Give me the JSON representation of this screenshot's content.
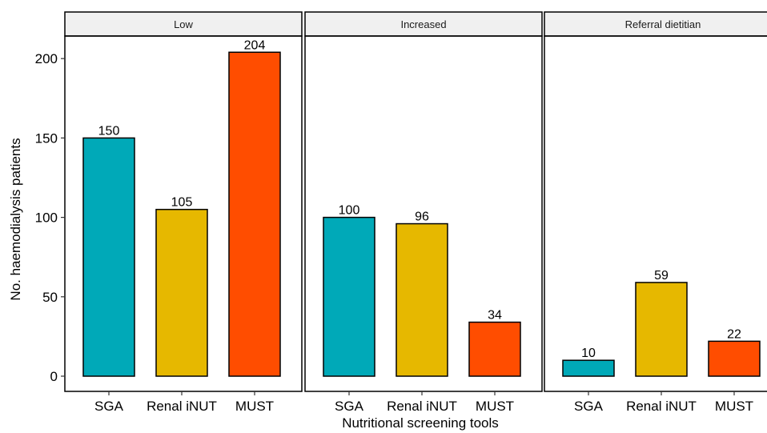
{
  "chart_data": {
    "type": "bar",
    "xlabel": "Nutritional screening tools",
    "ylabel": "No. haemodialysis patients",
    "ylim": [
      0,
      215
    ],
    "y_ticks": [
      0,
      50,
      100,
      150,
      200
    ],
    "categories": [
      "SGA",
      "Renal iNUT",
      "MUST"
    ],
    "category_colors": [
      "#00A9B8",
      "#E6B800",
      "#FF4D00"
    ],
    "panels": [
      {
        "title": "Low",
        "values": [
          150,
          105,
          204
        ]
      },
      {
        "title": "Increased",
        "values": [
          100,
          96,
          34
        ]
      },
      {
        "title": "Referral dietitian",
        "values": [
          10,
          59,
          22
        ]
      }
    ],
    "grid": false,
    "data_labels": true
  }
}
